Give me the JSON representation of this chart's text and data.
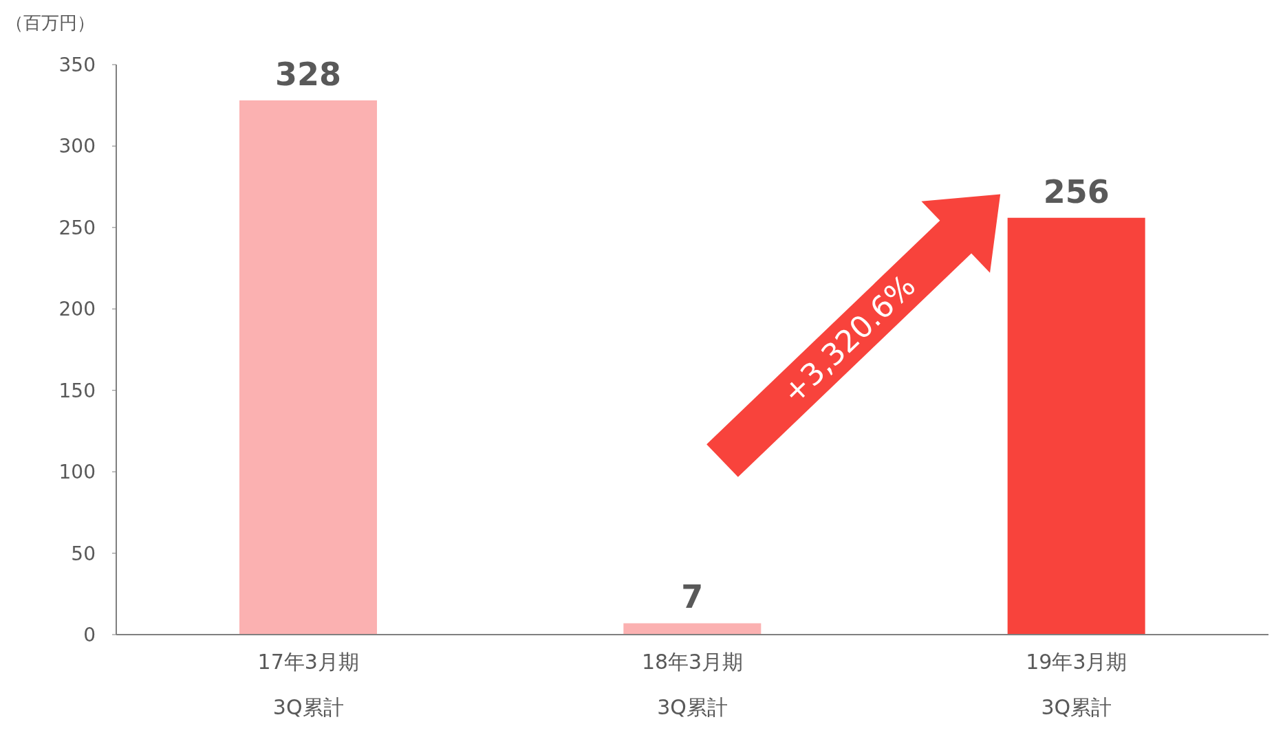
{
  "chart_data": {
    "type": "bar",
    "ylabel": "（百万円）",
    "categories": [
      "17年3月期\n3Q累計",
      "18年3月期\n3Q累計",
      "19年3月期\n3Q累計"
    ],
    "values": [
      328,
      7,
      256
    ],
    "colors": [
      "#fbb1b1",
      "#fbb1b1",
      "#f8433c"
    ],
    "ylim": [
      0,
      350
    ],
    "yticks": [
      0,
      50,
      100,
      150,
      200,
      250,
      300,
      350
    ],
    "data_labels": true,
    "annotations": [
      "+3,320.6%"
    ]
  }
}
